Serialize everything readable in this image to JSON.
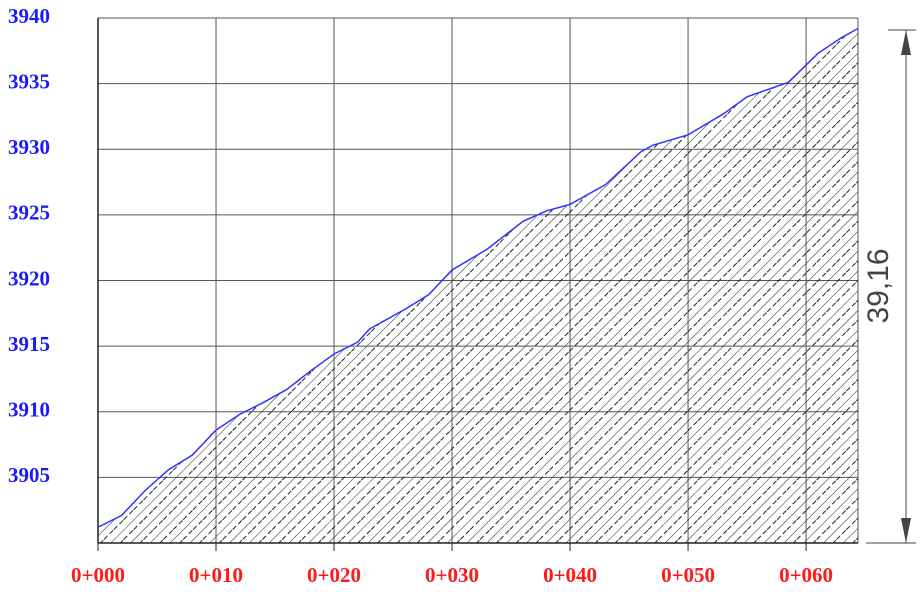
{
  "chart_data": {
    "type": "area",
    "x": [
      0,
      2,
      4,
      6,
      8,
      10,
      12,
      14,
      16,
      18,
      20,
      22,
      23,
      26,
      28,
      30,
      33,
      36,
      38,
      40,
      43,
      46,
      47,
      50,
      53,
      55,
      58.5,
      61,
      63,
      64.4
    ],
    "values": [
      3901.2,
      3902.1,
      3904.0,
      3905.6,
      3906.7,
      3908.6,
      3909.8,
      3910.7,
      3911.7,
      3913.1,
      3914.4,
      3915.3,
      3916.3,
      3917.8,
      3918.9,
      3920.8,
      3922.4,
      3924.5,
      3925.3,
      3925.8,
      3927.3,
      3929.8,
      3930.3,
      3931.1,
      3932.7,
      3934.0,
      3935.1,
      3937.3,
      3938.5,
      3939.2
    ],
    "color": "#3333ff",
    "xlim": [
      0,
      64.4
    ],
    "ylim": [
      3900,
      3940
    ],
    "xticks": [
      {
        "value": 0,
        "label": "0+000"
      },
      {
        "value": 10,
        "label": "0+010"
      },
      {
        "value": 20,
        "label": "0+020"
      },
      {
        "value": 30,
        "label": "0+030"
      },
      {
        "value": 40,
        "label": "0+040"
      },
      {
        "value": 50,
        "label": "0+050"
      },
      {
        "value": 60,
        "label": "0+060"
      }
    ],
    "yticks": [
      3905,
      3910,
      3915,
      3920,
      3925,
      3930,
      3935,
      3940
    ],
    "grid": true,
    "annotation": "39,16"
  }
}
